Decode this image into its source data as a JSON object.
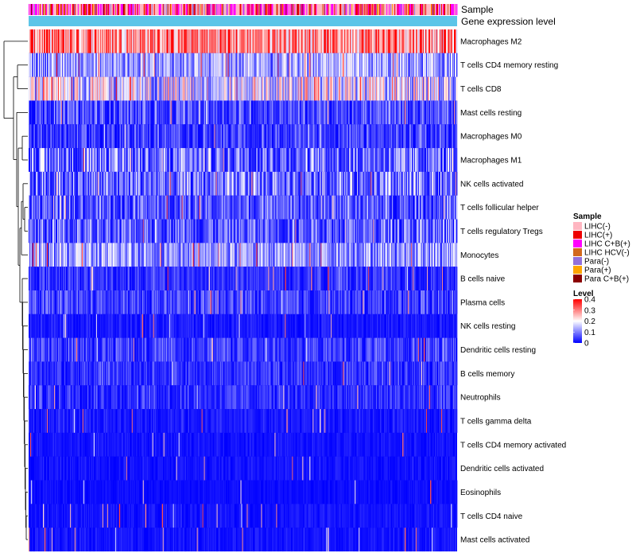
{
  "chart_data": {
    "type": "heatmap",
    "title": "",
    "annotations": [
      {
        "name": "Sample",
        "kind": "categorical"
      },
      {
        "name": "Gene expression level",
        "kind": "constant",
        "color": "#5cc5e8"
      }
    ],
    "rows": [
      "Macrophages M2",
      "T cells CD4 memory resting",
      "T cells CD8",
      "Mast cells resting",
      "Macrophages M0",
      "Macrophages M1",
      "NK cells activated",
      "T cells follicular helper",
      "T cells regulatory  Tregs",
      "Monocytes",
      "B cells naive",
      "Plasma cells",
      "NK cells resting",
      "Dendritic cells resting",
      "B cells memory",
      "Neutrophils",
      "T cells gamma delta",
      "T cells CD4 memory activated",
      "Dendritic cells activated",
      "Eosinophils",
      "T cells CD4 naive",
      "Mast cells activated"
    ],
    "row_mean_level": [
      0.3,
      0.12,
      0.17,
      0.06,
      0.05,
      0.09,
      0.09,
      0.07,
      0.08,
      0.12,
      0.04,
      0.05,
      0.02,
      0.05,
      0.04,
      0.04,
      0.02,
      0.015,
      0.015,
      0.01,
      0.015,
      0.015
    ],
    "n_samples": 540,
    "sample_legend": {
      "title": "Sample",
      "entries": [
        {
          "label": "LIHC(-)",
          "color": "#ffb6c1"
        },
        {
          "label": "LIHC(+)",
          "color": "#ee0000"
        },
        {
          "label": "LIHC C+B(+)",
          "color": "#ff00ff"
        },
        {
          "label": "LIHC HCV(-)",
          "color": "#d2691e"
        },
        {
          "label": "Para(-)",
          "color": "#9370db"
        },
        {
          "label": "Para(+)",
          "color": "#ffa500"
        },
        {
          "label": "Para C+B(+)",
          "color": "#8b0000"
        }
      ]
    },
    "level_legend": {
      "title": "Level",
      "ticks": [
        "0.4",
        "0.3",
        "0.2",
        "0.1",
        "0"
      ],
      "range": [
        0,
        0.4
      ],
      "colors": [
        "#0000ff",
        "#ffffff",
        "#ff0000"
      ]
    }
  }
}
